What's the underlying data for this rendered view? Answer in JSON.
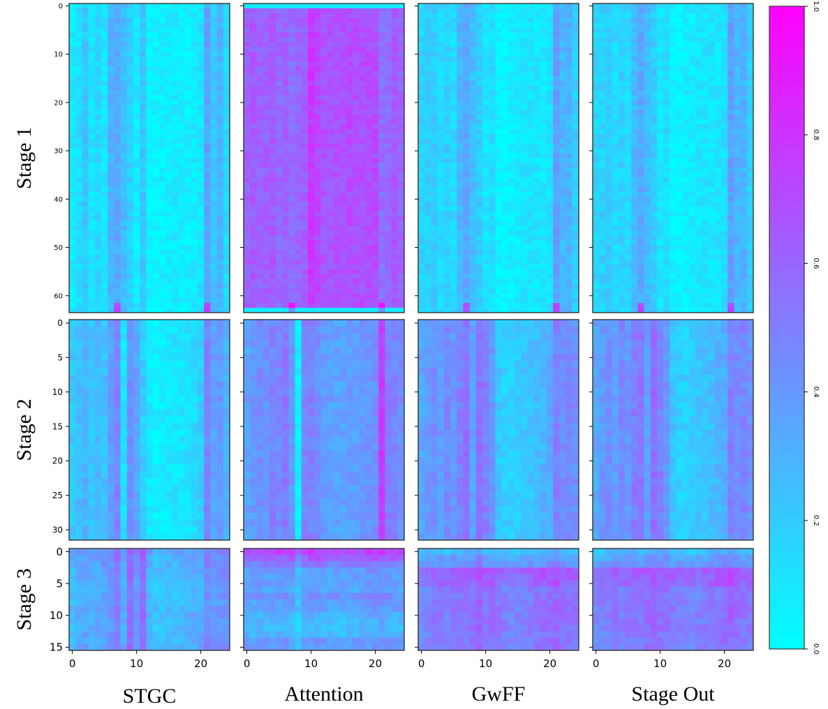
{
  "chart_data": {
    "type": "heatmap",
    "colormap": "cool",
    "colormap_stops": [
      "#00ffff",
      "#ff00ff"
    ],
    "value_range": [
      0,
      1
    ],
    "row_labels": [
      "Stage 1",
      "Stage 2",
      "Stage 3"
    ],
    "column_labels": [
      "STGC",
      "Attention",
      "GwFF",
      "Stage Out"
    ],
    "x_axis": {
      "range": [
        0,
        24
      ],
      "ticks": [
        0,
        10,
        20
      ],
      "tick_labels": [
        "0",
        "10",
        "20"
      ]
    },
    "rows": [
      {
        "label": "Stage 1",
        "n_rows": 64,
        "y_ticks": [
          0,
          10,
          20,
          30,
          40,
          50,
          60
        ],
        "y_tick_labels": [
          "0",
          "10",
          "20",
          "30",
          "40",
          "50",
          "60"
        ]
      },
      {
        "label": "Stage 2",
        "n_rows": 32,
        "y_ticks": [
          0,
          5,
          10,
          15,
          20,
          25,
          30
        ],
        "y_tick_labels": [
          "0",
          "5",
          "10",
          "15",
          "20",
          "25",
          "30"
        ]
      },
      {
        "label": "Stage 3",
        "n_rows": 16,
        "y_ticks": [
          0,
          5,
          10,
          15
        ],
        "y_tick_labels": [
          "0",
          "5",
          "10",
          "15"
        ]
      }
    ],
    "column_profiles": {
      "Stage 1": {
        "STGC": [
          0.08,
          0.12,
          0.22,
          0.1,
          0.16,
          0.1,
          0.3,
          0.34,
          0.26,
          0.18,
          0.08,
          0.22,
          0.04,
          0.04,
          0.06,
          0.06,
          0.08,
          0.06,
          0.06,
          0.08,
          0.1,
          0.36,
          0.22,
          0.3,
          0.14
        ],
        "Attention": [
          0.62,
          0.64,
          0.6,
          0.62,
          0.64,
          0.58,
          0.62,
          0.56,
          0.6,
          0.62,
          0.78,
          0.72,
          0.66,
          0.66,
          0.68,
          0.68,
          0.7,
          0.68,
          0.68,
          0.7,
          0.7,
          0.56,
          0.58,
          0.66,
          0.6
        ],
        "GwFF": [
          0.16,
          0.18,
          0.2,
          0.14,
          0.18,
          0.14,
          0.28,
          0.34,
          0.26,
          0.2,
          0.1,
          0.14,
          0.04,
          0.04,
          0.06,
          0.08,
          0.1,
          0.1,
          0.1,
          0.1,
          0.12,
          0.38,
          0.28,
          0.3,
          0.18
        ],
        "Stage Out": [
          0.16,
          0.18,
          0.2,
          0.14,
          0.18,
          0.14,
          0.28,
          0.34,
          0.26,
          0.2,
          0.1,
          0.14,
          0.04,
          0.04,
          0.06,
          0.08,
          0.1,
          0.1,
          0.1,
          0.1,
          0.12,
          0.38,
          0.28,
          0.3,
          0.18
        ]
      },
      "Stage 2": {
        "STGC": [
          0.22,
          0.26,
          0.3,
          0.22,
          0.28,
          0.24,
          0.38,
          0.48,
          0.1,
          0.44,
          0.36,
          0.2,
          0.08,
          0.06,
          0.08,
          0.1,
          0.1,
          0.1,
          0.12,
          0.14,
          0.2,
          0.48,
          0.36,
          0.4,
          0.3
        ],
        "Attention": [
          0.36,
          0.4,
          0.44,
          0.42,
          0.48,
          0.46,
          0.52,
          0.4,
          0.06,
          0.48,
          0.5,
          0.44,
          0.38,
          0.36,
          0.36,
          0.36,
          0.38,
          0.38,
          0.4,
          0.42,
          0.44,
          0.76,
          0.5,
          0.48,
          0.44
        ],
        "GwFF": [
          0.34,
          0.4,
          0.44,
          0.38,
          0.46,
          0.4,
          0.5,
          0.54,
          0.36,
          0.56,
          0.5,
          0.4,
          0.22,
          0.18,
          0.18,
          0.2,
          0.22,
          0.24,
          0.26,
          0.3,
          0.32,
          0.5,
          0.44,
          0.48,
          0.42
        ],
        "Stage Out": [
          0.34,
          0.4,
          0.44,
          0.38,
          0.46,
          0.4,
          0.5,
          0.54,
          0.36,
          0.56,
          0.5,
          0.4,
          0.22,
          0.18,
          0.18,
          0.2,
          0.22,
          0.24,
          0.26,
          0.3,
          0.32,
          0.5,
          0.44,
          0.48,
          0.42
        ]
      },
      "Stage 3": {
        "STGC": [
          0.24,
          0.3,
          0.34,
          0.3,
          0.32,
          0.36,
          0.38,
          0.5,
          0.3,
          0.56,
          0.4,
          0.54,
          0.28,
          0.22,
          0.22,
          0.24,
          0.24,
          0.26,
          0.28,
          0.3,
          0.32,
          0.44,
          0.38,
          0.4,
          0.42
        ],
        "Attention": [
          0.36,
          0.36,
          0.38,
          0.38,
          0.38,
          0.4,
          0.4,
          0.38,
          0.26,
          0.38,
          0.4,
          0.4,
          0.38,
          0.36,
          0.36,
          0.36,
          0.38,
          0.38,
          0.38,
          0.4,
          0.42,
          0.44,
          0.4,
          0.38,
          0.38
        ],
        "GwFF": [
          0.42,
          0.46,
          0.48,
          0.5,
          0.46,
          0.5,
          0.52,
          0.5,
          0.52,
          0.58,
          0.5,
          0.52,
          0.48,
          0.46,
          0.44,
          0.44,
          0.46,
          0.48,
          0.5,
          0.52,
          0.54,
          0.58,
          0.52,
          0.5,
          0.5
        ],
        "Stage Out": [
          0.42,
          0.46,
          0.48,
          0.5,
          0.46,
          0.5,
          0.52,
          0.5,
          0.52,
          0.58,
          0.5,
          0.52,
          0.48,
          0.46,
          0.44,
          0.44,
          0.46,
          0.48,
          0.5,
          0.52,
          0.54,
          0.58,
          0.52,
          0.5,
          0.5
        ]
      }
    },
    "row_profiles": {
      "Stage 1": {
        "STGC": [
          0.0,
          0.0
        ],
        "Attention": [
          0.0,
          0.04
        ],
        "GwFF": [
          0.0,
          0.0
        ],
        "Stage Out": [
          0.0,
          0.0
        ]
      },
      "Stage 2": {
        "STGC": [
          0.0,
          0.0
        ],
        "Attention": [
          0.0,
          0.0
        ],
        "GwFF": [
          0.0,
          0.0
        ],
        "Stage Out": [
          0.0,
          0.0
        ]
      },
      "Stage 3": {
        "STGC": [
          0.1,
          0.06,
          0.04,
          0.02,
          0.02,
          0.0,
          0.0,
          0.0,
          0.0,
          0.02,
          0.02,
          0.0,
          0.0,
          0.02,
          0.02,
          0.04
        ],
        "Attention": [
          0.36,
          0.24,
          0.12,
          0.02,
          0.0,
          0.0,
          -0.04,
          0.06,
          0.0,
          -0.02,
          -0.08,
          -0.1,
          -0.12,
          -0.1,
          0.02,
          0.0
        ],
        "GwFF": [
          -0.22,
          -0.12,
          -0.08,
          0.14,
          0.12,
          0.1,
          0.02,
          0.02,
          0.04,
          0.04,
          0.04,
          0.04,
          0.04,
          0.02,
          0.02,
          0.02
        ],
        "Stage Out": [
          -0.22,
          -0.12,
          -0.08,
          0.14,
          0.12,
          0.1,
          0.02,
          0.02,
          0.04,
          0.04,
          0.04,
          0.04,
          0.04,
          0.02,
          0.02,
          0.02
        ]
      }
    },
    "colorbar": {
      "min": 0.0,
      "max": 1.0,
      "ticks": [
        0.0,
        0.2,
        0.4,
        0.6,
        0.8,
        1.0
      ],
      "tick_labels": [
        "0.0",
        "0.2",
        "0.4",
        "0.6",
        "0.8",
        "1.0"
      ]
    }
  }
}
